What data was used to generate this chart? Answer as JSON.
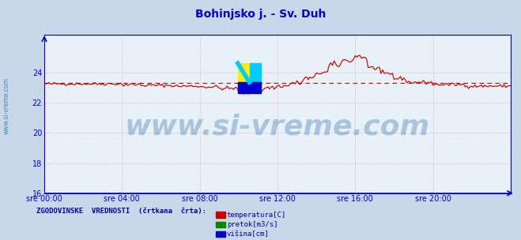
{
  "title": "Bohinjsko j. - Sv. Duh",
  "title_color": "#0000cc",
  "title_fontsize": 10,
  "fig_bg_color": "#c8d8e8",
  "plot_bg_color": "#e8f0f8",
  "xlim": [
    0,
    288
  ],
  "ylim": [
    16,
    26.5
  ],
  "yticks": [
    16,
    18,
    20,
    22,
    24
  ],
  "xtick_labels": [
    "sre 00:00",
    "sre 04:00",
    "sre 08:00",
    "sre 12:00",
    "sre 16:00",
    "sre 20:00"
  ],
  "xtick_positions": [
    0,
    48,
    96,
    144,
    192,
    240
  ],
  "grid_color": "#e8a0a0",
  "axis_color": "#0000cc",
  "temp_color": "#cc0000",
  "hist_color": "#cc0000",
  "pretok_color": "#008800",
  "visina_color": "#0000cc",
  "watermark": "www.si-vreme.com",
  "watermark_color": "#1a5fa8",
  "watermark_alpha": 0.3,
  "watermark_fontsize": 26,
  "legend_title": "ZGODOVINSKE  VREDNOSTI  (črtkana  črta):",
  "legend_title_color": "#0000aa",
  "legend_items": [
    "temperatura[C]",
    "pretok[m3/s]",
    "višina[cm]"
  ],
  "legend_colors": [
    "#cc0000",
    "#008800",
    "#0000cc"
  ],
  "sidebar_text": "www.si-vreme.com",
  "sidebar_color": "#4488aa"
}
